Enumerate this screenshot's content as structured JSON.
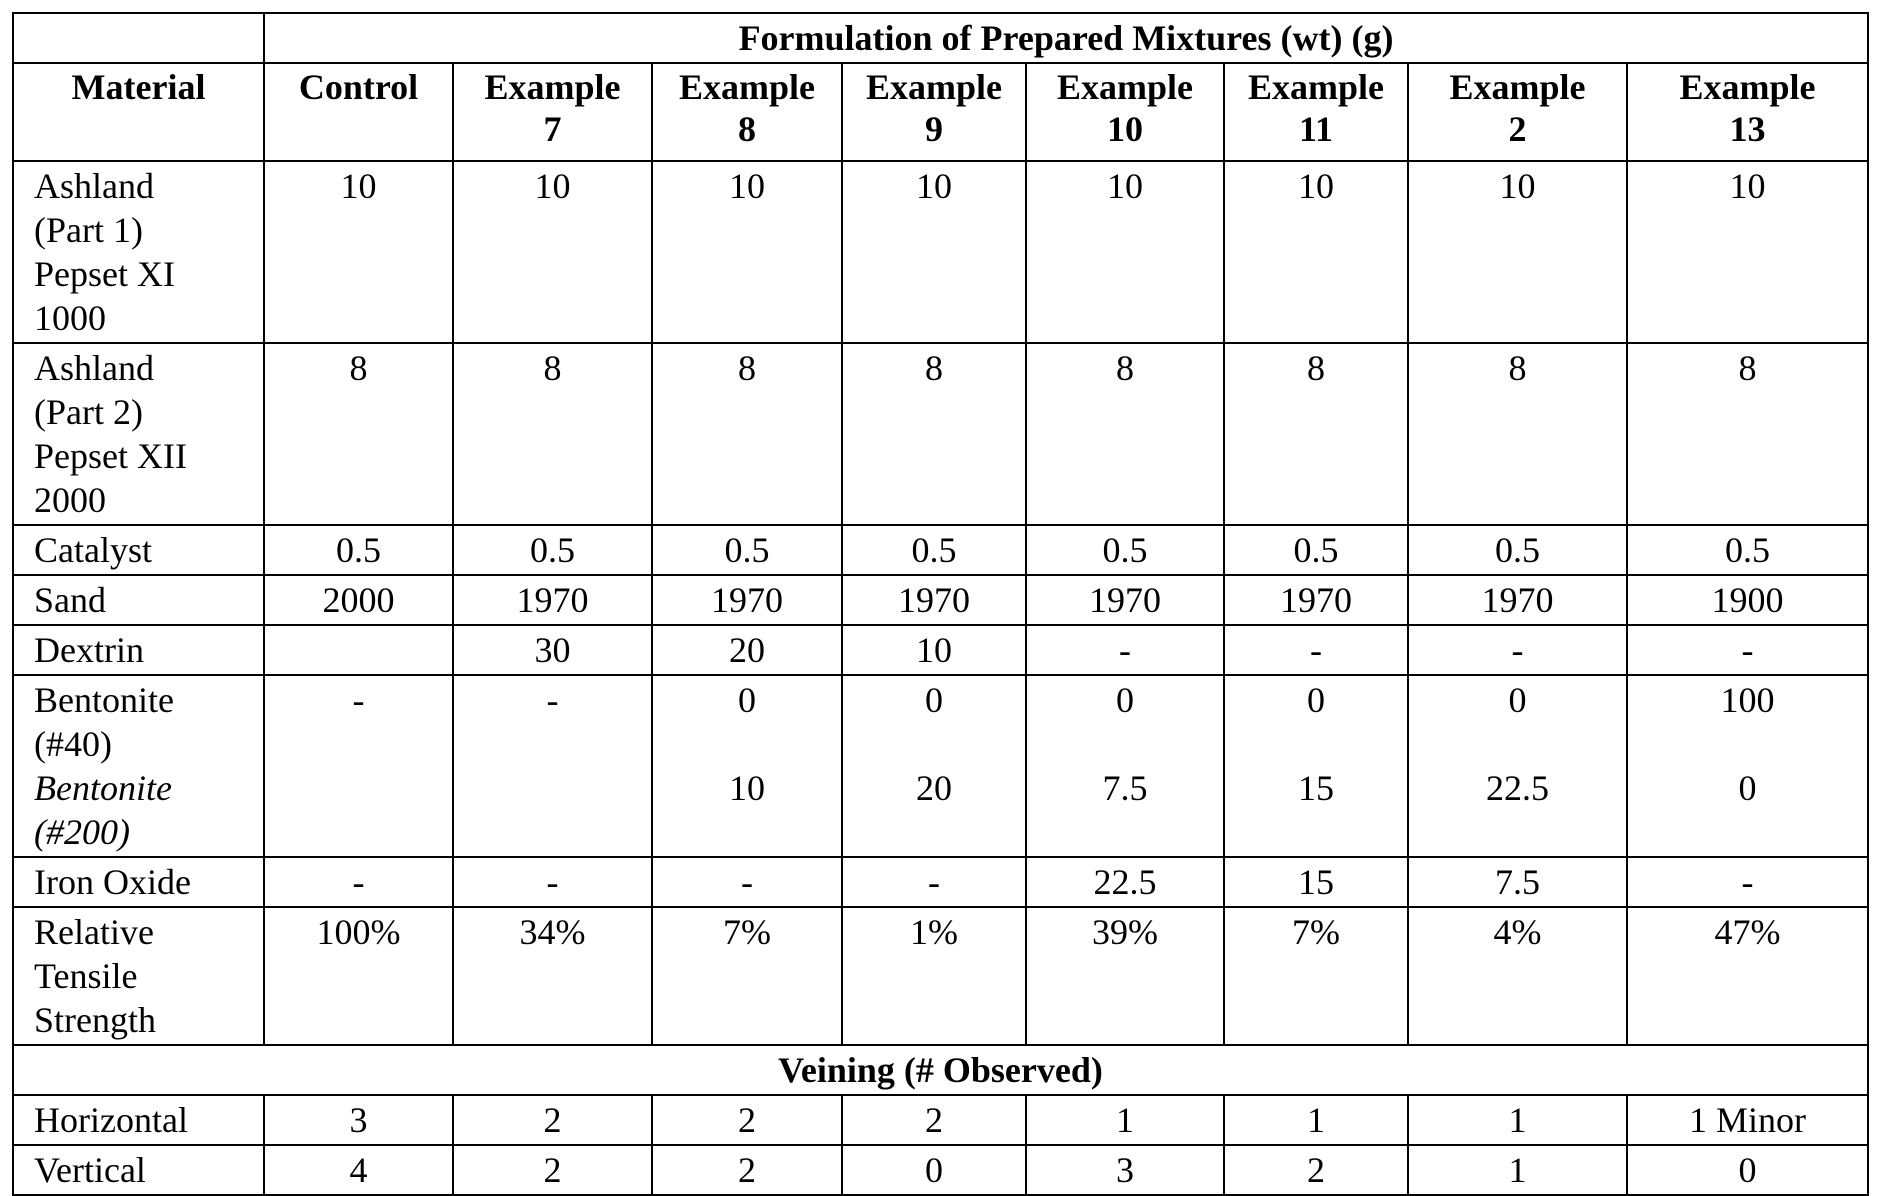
{
  "table": {
    "group_header": "Formulation of Prepared Mixtures (wt) (g)",
    "material_header": "Material",
    "columns": [
      {
        "line1": "Control",
        "line2": ""
      },
      {
        "line1": "Example",
        "line2": "7"
      },
      {
        "line1": "Example",
        "line2": "8"
      },
      {
        "line1": "Example",
        "line2": "9"
      },
      {
        "line1": "Example",
        "line2": "10"
      },
      {
        "line1": "Example",
        "line2": "11"
      },
      {
        "line1": "Example",
        "line2": "2"
      },
      {
        "line1": "Example",
        "line2": "13"
      }
    ],
    "rows": {
      "part1": {
        "label_lines": [
          "Ashland",
          "(Part 1)",
          "Pepset XI",
          "1000"
        ],
        "values": [
          "10",
          "10",
          "10",
          "10",
          "10",
          "10",
          "10",
          "10"
        ]
      },
      "part2": {
        "label_lines": [
          "Ashland",
          "(Part 2)",
          "Pepset XII",
          "2000"
        ],
        "values": [
          "8",
          "8",
          "8",
          "8",
          "8",
          "8",
          "8",
          "8"
        ]
      },
      "catalyst": {
        "label": "Catalyst",
        "values": [
          "0.5",
          "0.5",
          "0.5",
          "0.5",
          "0.5",
          "0.5",
          "0.5",
          "0.5"
        ]
      },
      "sand": {
        "label": "Sand",
        "values": [
          "2000",
          "1970",
          "1970",
          "1970",
          "1970",
          "1970",
          "1970",
          "1900"
        ]
      },
      "dextrin": {
        "label": "Dextrin",
        "values": [
          "",
          "30",
          "20",
          "10",
          "-",
          "-",
          "-",
          "-"
        ]
      },
      "bentonite": {
        "label40_lines": [
          "Bentonite",
          "(#40)"
        ],
        "label200_lines": [
          "Bentonite",
          "(#200)"
        ],
        "values40": [
          "-",
          "-",
          "0",
          "0",
          "0",
          "0",
          "0",
          "100"
        ],
        "values200": [
          "",
          "",
          "10",
          "20",
          "7.5",
          "15",
          "22.5",
          "0"
        ]
      },
      "iron_oxide": {
        "label": "Iron Oxide",
        "values": [
          "-",
          "-",
          "-",
          "-",
          "22.5",
          "15",
          "7.5",
          "-"
        ]
      },
      "rts": {
        "label_lines": [
          "Relative",
          "Tensile",
          "Strength"
        ],
        "values": [
          "100%",
          "34%",
          "7%",
          "1%",
          "39%",
          "7%",
          "4%",
          "47%"
        ]
      }
    },
    "veining_header": "Veining (# Observed)",
    "veining": {
      "horizontal": {
        "label": "Horizontal",
        "values": [
          "3",
          "2",
          "2",
          "2",
          "1",
          "1",
          "1",
          "1 Minor"
        ]
      },
      "vertical": {
        "label": "Vertical",
        "values": [
          "4",
          "2",
          "2",
          "0",
          "3",
          "2",
          "1",
          "0"
        ]
      }
    }
  }
}
